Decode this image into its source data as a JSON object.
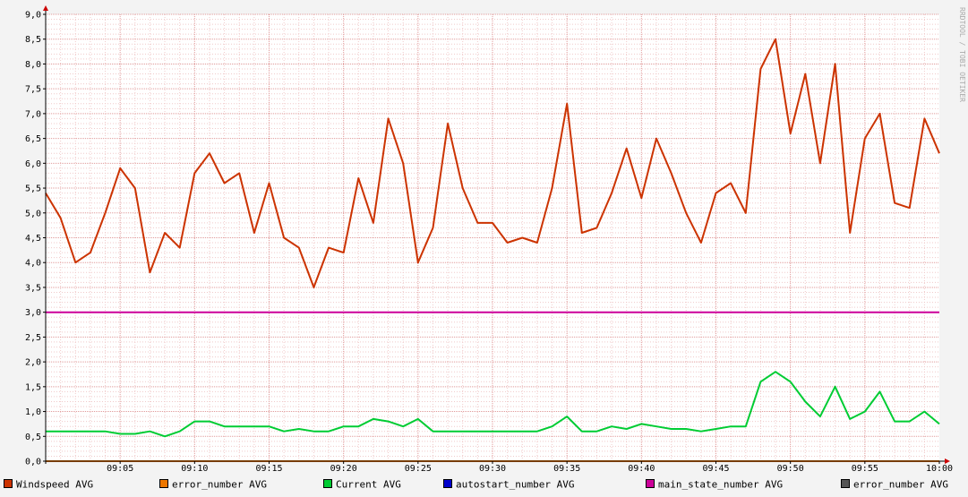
{
  "watermark": "RRDTOOL / TOBI OETIKER",
  "chart_data": {
    "type": "line",
    "title": "",
    "xlabel": "",
    "ylabel": "",
    "ylim": [
      0,
      9
    ],
    "xlim": [
      "09:00",
      "10:00"
    ],
    "y_ticks": [
      "0,0",
      "0,5",
      "1,0",
      "1,5",
      "2,0",
      "2,5",
      "3,0",
      "3,5",
      "4,0",
      "4,5",
      "5,0",
      "5,5",
      "6,0",
      "6,5",
      "7,0",
      "7,5",
      "8,0",
      "8,5",
      "9,0"
    ],
    "x_ticks": [
      "09:05",
      "09:10",
      "09:15",
      "09:20",
      "09:25",
      "09:30",
      "09:35",
      "09:40",
      "09:45",
      "09:50",
      "09:55",
      "10:00"
    ],
    "grid": true,
    "legend_placement": "bottom",
    "series": [
      {
        "name": "Windspeed AVG",
        "color": "#cc3300",
        "x": [
          "09:00",
          "09:01",
          "09:02",
          "09:03",
          "09:04",
          "09:05",
          "09:06",
          "09:07",
          "09:08",
          "09:09",
          "09:10",
          "09:11",
          "09:12",
          "09:13",
          "09:14",
          "09:15",
          "09:16",
          "09:17",
          "09:18",
          "09:19",
          "09:20",
          "09:21",
          "09:22",
          "09:23",
          "09:24",
          "09:25",
          "09:26",
          "09:27",
          "09:28",
          "09:29",
          "09:30",
          "09:31",
          "09:32",
          "09:33",
          "09:34",
          "09:35",
          "09:36",
          "09:37",
          "09:38",
          "09:39",
          "09:40",
          "09:41",
          "09:42",
          "09:43",
          "09:44",
          "09:45",
          "09:46",
          "09:47",
          "09:48",
          "09:49",
          "09:50",
          "09:51",
          "09:52",
          "09:53",
          "09:54",
          "09:55",
          "09:56",
          "09:57",
          "09:58",
          "09:59",
          "10:00"
        ],
        "values": [
          5.4,
          4.9,
          4.0,
          4.2,
          5.0,
          5.9,
          5.5,
          3.8,
          4.6,
          4.3,
          5.8,
          6.2,
          5.6,
          5.8,
          4.6,
          5.6,
          4.5,
          4.3,
          3.5,
          4.3,
          4.2,
          5.7,
          4.8,
          6.9,
          6.0,
          4.0,
          4.7,
          6.8,
          5.5,
          4.8,
          4.8,
          4.4,
          4.5,
          4.4,
          5.5,
          7.2,
          4.6,
          4.7,
          5.4,
          6.3,
          5.3,
          6.5,
          5.8,
          5.0,
          4.4,
          5.4,
          5.6,
          5.0,
          7.9,
          8.5,
          6.6,
          7.8,
          6.0,
          8.0,
          4.6,
          6.5,
          7.0,
          5.2,
          5.1,
          6.9,
          6.2
        ]
      },
      {
        "name": "error_number AVG",
        "color": "#ee7700",
        "x": [
          "09:00",
          "10:00"
        ],
        "values": [
          0,
          0
        ]
      },
      {
        "name": "Current AVG",
        "color": "#00cc33",
        "x": [
          "09:00",
          "09:01",
          "09:02",
          "09:03",
          "09:04",
          "09:05",
          "09:06",
          "09:07",
          "09:08",
          "09:09",
          "09:10",
          "09:11",
          "09:12",
          "09:13",
          "09:14",
          "09:15",
          "09:16",
          "09:17",
          "09:18",
          "09:19",
          "09:20",
          "09:21",
          "09:22",
          "09:23",
          "09:24",
          "09:25",
          "09:26",
          "09:27",
          "09:28",
          "09:29",
          "09:30",
          "09:31",
          "09:32",
          "09:33",
          "09:34",
          "09:35",
          "09:36",
          "09:37",
          "09:38",
          "09:39",
          "09:40",
          "09:41",
          "09:42",
          "09:43",
          "09:44",
          "09:45",
          "09:46",
          "09:47",
          "09:48",
          "09:49",
          "09:50",
          "09:51",
          "09:52",
          "09:53",
          "09:54",
          "09:55",
          "09:56",
          "09:57",
          "09:58",
          "09:59",
          "10:00"
        ],
        "values": [
          0.6,
          0.6,
          0.6,
          0.6,
          0.6,
          0.55,
          0.55,
          0.6,
          0.5,
          0.6,
          0.8,
          0.8,
          0.7,
          0.7,
          0.7,
          0.7,
          0.6,
          0.65,
          0.6,
          0.6,
          0.7,
          0.7,
          0.85,
          0.8,
          0.7,
          0.85,
          0.6,
          0.6,
          0.6,
          0.6,
          0.6,
          0.6,
          0.6,
          0.6,
          0.7,
          0.9,
          0.6,
          0.6,
          0.7,
          0.65,
          0.75,
          0.7,
          0.65,
          0.65,
          0.6,
          0.65,
          0.7,
          0.7,
          1.6,
          1.8,
          1.6,
          1.2,
          0.9,
          1.5,
          0.85,
          1.0,
          1.4,
          0.8,
          0.8,
          1.0,
          0.75
        ]
      },
      {
        "name": "autostart_number AVG",
        "color": "#0000cc",
        "x": [
          "09:00",
          "10:00"
        ],
        "values": [
          0,
          0
        ]
      },
      {
        "name": "main_state_number AVG",
        "color": "#cc0099",
        "x": [
          "09:00",
          "10:00"
        ],
        "values": [
          3.0,
          3.0
        ]
      },
      {
        "name": "error_number AVG",
        "color": "#555555",
        "x": [
          "09:00",
          "10:00"
        ],
        "values": [
          0,
          0
        ]
      }
    ]
  }
}
